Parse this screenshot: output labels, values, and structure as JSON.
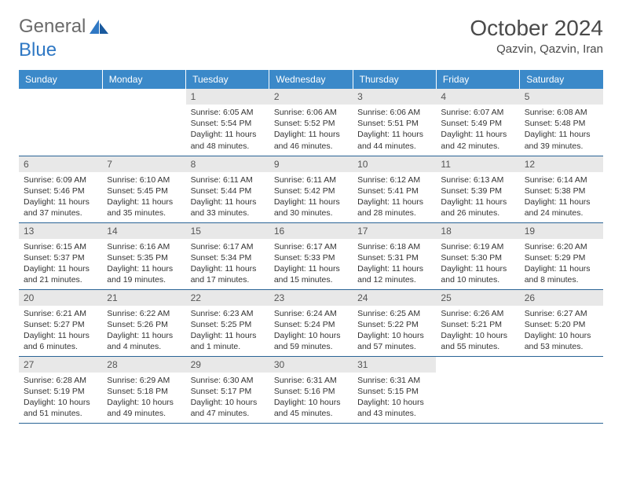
{
  "logo": {
    "part1": "General",
    "part2": "Blue"
  },
  "title": "October 2024",
  "location": "Qazvin, Qazvin, Iran",
  "weekdays": [
    "Sunday",
    "Monday",
    "Tuesday",
    "Wednesday",
    "Thursday",
    "Friday",
    "Saturday"
  ],
  "colors": {
    "header_bg": "#3b89c9",
    "header_fg": "#ffffff",
    "daynum_bg": "#e8e8e8",
    "row_border": "#2a6496",
    "logo_gray": "#6a6a6a",
    "logo_blue": "#2f78c4"
  },
  "weeks": [
    [
      {
        "num": "",
        "sunrise": "",
        "sunset": "",
        "daylight": ""
      },
      {
        "num": "",
        "sunrise": "",
        "sunset": "",
        "daylight": ""
      },
      {
        "num": "1",
        "sunrise": "Sunrise: 6:05 AM",
        "sunset": "Sunset: 5:54 PM",
        "daylight": "Daylight: 11 hours and 48 minutes."
      },
      {
        "num": "2",
        "sunrise": "Sunrise: 6:06 AM",
        "sunset": "Sunset: 5:52 PM",
        "daylight": "Daylight: 11 hours and 46 minutes."
      },
      {
        "num": "3",
        "sunrise": "Sunrise: 6:06 AM",
        "sunset": "Sunset: 5:51 PM",
        "daylight": "Daylight: 11 hours and 44 minutes."
      },
      {
        "num": "4",
        "sunrise": "Sunrise: 6:07 AM",
        "sunset": "Sunset: 5:49 PM",
        "daylight": "Daylight: 11 hours and 42 minutes."
      },
      {
        "num": "5",
        "sunrise": "Sunrise: 6:08 AM",
        "sunset": "Sunset: 5:48 PM",
        "daylight": "Daylight: 11 hours and 39 minutes."
      }
    ],
    [
      {
        "num": "6",
        "sunrise": "Sunrise: 6:09 AM",
        "sunset": "Sunset: 5:46 PM",
        "daylight": "Daylight: 11 hours and 37 minutes."
      },
      {
        "num": "7",
        "sunrise": "Sunrise: 6:10 AM",
        "sunset": "Sunset: 5:45 PM",
        "daylight": "Daylight: 11 hours and 35 minutes."
      },
      {
        "num": "8",
        "sunrise": "Sunrise: 6:11 AM",
        "sunset": "Sunset: 5:44 PM",
        "daylight": "Daylight: 11 hours and 33 minutes."
      },
      {
        "num": "9",
        "sunrise": "Sunrise: 6:11 AM",
        "sunset": "Sunset: 5:42 PM",
        "daylight": "Daylight: 11 hours and 30 minutes."
      },
      {
        "num": "10",
        "sunrise": "Sunrise: 6:12 AM",
        "sunset": "Sunset: 5:41 PM",
        "daylight": "Daylight: 11 hours and 28 minutes."
      },
      {
        "num": "11",
        "sunrise": "Sunrise: 6:13 AM",
        "sunset": "Sunset: 5:39 PM",
        "daylight": "Daylight: 11 hours and 26 minutes."
      },
      {
        "num": "12",
        "sunrise": "Sunrise: 6:14 AM",
        "sunset": "Sunset: 5:38 PM",
        "daylight": "Daylight: 11 hours and 24 minutes."
      }
    ],
    [
      {
        "num": "13",
        "sunrise": "Sunrise: 6:15 AM",
        "sunset": "Sunset: 5:37 PM",
        "daylight": "Daylight: 11 hours and 21 minutes."
      },
      {
        "num": "14",
        "sunrise": "Sunrise: 6:16 AM",
        "sunset": "Sunset: 5:35 PM",
        "daylight": "Daylight: 11 hours and 19 minutes."
      },
      {
        "num": "15",
        "sunrise": "Sunrise: 6:17 AM",
        "sunset": "Sunset: 5:34 PM",
        "daylight": "Daylight: 11 hours and 17 minutes."
      },
      {
        "num": "16",
        "sunrise": "Sunrise: 6:17 AM",
        "sunset": "Sunset: 5:33 PM",
        "daylight": "Daylight: 11 hours and 15 minutes."
      },
      {
        "num": "17",
        "sunrise": "Sunrise: 6:18 AM",
        "sunset": "Sunset: 5:31 PM",
        "daylight": "Daylight: 11 hours and 12 minutes."
      },
      {
        "num": "18",
        "sunrise": "Sunrise: 6:19 AM",
        "sunset": "Sunset: 5:30 PM",
        "daylight": "Daylight: 11 hours and 10 minutes."
      },
      {
        "num": "19",
        "sunrise": "Sunrise: 6:20 AM",
        "sunset": "Sunset: 5:29 PM",
        "daylight": "Daylight: 11 hours and 8 minutes."
      }
    ],
    [
      {
        "num": "20",
        "sunrise": "Sunrise: 6:21 AM",
        "sunset": "Sunset: 5:27 PM",
        "daylight": "Daylight: 11 hours and 6 minutes."
      },
      {
        "num": "21",
        "sunrise": "Sunrise: 6:22 AM",
        "sunset": "Sunset: 5:26 PM",
        "daylight": "Daylight: 11 hours and 4 minutes."
      },
      {
        "num": "22",
        "sunrise": "Sunrise: 6:23 AM",
        "sunset": "Sunset: 5:25 PM",
        "daylight": "Daylight: 11 hours and 1 minute."
      },
      {
        "num": "23",
        "sunrise": "Sunrise: 6:24 AM",
        "sunset": "Sunset: 5:24 PM",
        "daylight": "Daylight: 10 hours and 59 minutes."
      },
      {
        "num": "24",
        "sunrise": "Sunrise: 6:25 AM",
        "sunset": "Sunset: 5:22 PM",
        "daylight": "Daylight: 10 hours and 57 minutes."
      },
      {
        "num": "25",
        "sunrise": "Sunrise: 6:26 AM",
        "sunset": "Sunset: 5:21 PM",
        "daylight": "Daylight: 10 hours and 55 minutes."
      },
      {
        "num": "26",
        "sunrise": "Sunrise: 6:27 AM",
        "sunset": "Sunset: 5:20 PM",
        "daylight": "Daylight: 10 hours and 53 minutes."
      }
    ],
    [
      {
        "num": "27",
        "sunrise": "Sunrise: 6:28 AM",
        "sunset": "Sunset: 5:19 PM",
        "daylight": "Daylight: 10 hours and 51 minutes."
      },
      {
        "num": "28",
        "sunrise": "Sunrise: 6:29 AM",
        "sunset": "Sunset: 5:18 PM",
        "daylight": "Daylight: 10 hours and 49 minutes."
      },
      {
        "num": "29",
        "sunrise": "Sunrise: 6:30 AM",
        "sunset": "Sunset: 5:17 PM",
        "daylight": "Daylight: 10 hours and 47 minutes."
      },
      {
        "num": "30",
        "sunrise": "Sunrise: 6:31 AM",
        "sunset": "Sunset: 5:16 PM",
        "daylight": "Daylight: 10 hours and 45 minutes."
      },
      {
        "num": "31",
        "sunrise": "Sunrise: 6:31 AM",
        "sunset": "Sunset: 5:15 PM",
        "daylight": "Daylight: 10 hours and 43 minutes."
      },
      {
        "num": "",
        "sunrise": "",
        "sunset": "",
        "daylight": ""
      },
      {
        "num": "",
        "sunrise": "",
        "sunset": "",
        "daylight": ""
      }
    ]
  ]
}
